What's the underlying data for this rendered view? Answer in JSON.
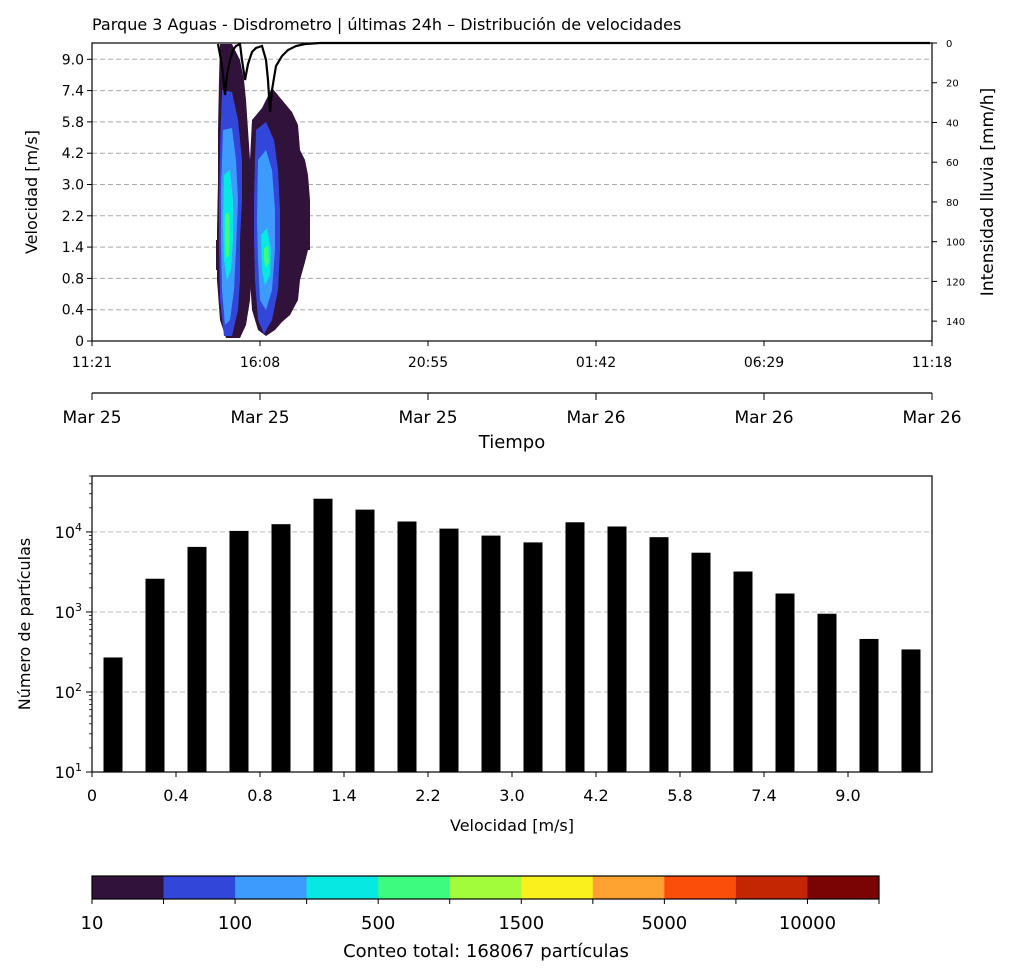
{
  "chart_data": [
    {
      "type": "heatmap",
      "title": "Parque 3 Aguas - Disdrometro | últimas 24h – Distribución de velocidades",
      "ylabel": "Velocidad [m/s]",
      "y_tick_labels": [
        "0",
        "0.4",
        "0.8",
        "1.4",
        "2.2",
        "3.0",
        "4.2",
        "5.8",
        "7.4",
        "9.0"
      ],
      "x_tick_labels_time": [
        "11:21",
        "16:08",
        "20:55",
        "01:42",
        "06:29",
        "11:18"
      ],
      "x_tick_labels_date": [
        "Mar 25",
        "Mar 25",
        "Mar 25",
        "Mar 26",
        "Mar 26",
        "Mar 26"
      ],
      "xlabel": "Tiempo",
      "secondary_ylabel": "Intensidad lluvia [mm/h]",
      "secondary_y_tick_labels": [
        "0",
        "20",
        "40",
        "60",
        "80",
        "100",
        "120",
        "140"
      ],
      "secondary_ylim": [
        150,
        0
      ],
      "grid": "horizontal dashed",
      "rain_periods": [
        {
          "start": "15:30",
          "end": "16:40",
          "peak_count_class": "1500-5000"
        },
        {
          "start": "16:30",
          "end": "18:40",
          "peak_count_class": "500-1500"
        }
      ]
    },
    {
      "type": "bar",
      "xlabel": "Velocidad [m/s]",
      "ylabel": "Número de partículas",
      "yscale": "log",
      "ylim": [
        10,
        50000
      ],
      "y_tick_labels": [
        "10^1",
        "10^2",
        "10^3",
        "10^4"
      ],
      "x_tick_labels": [
        "0",
        "0.4",
        "0.8",
        "1.4",
        "2.2",
        "3.0",
        "4.2",
        "5.8",
        "7.4",
        "9.0"
      ],
      "values": [
        270,
        2600,
        6500,
        10300,
        12500,
        26000,
        19000,
        13500,
        11000,
        9000,
        7400,
        13200,
        11700,
        8600,
        5500,
        3200,
        1700,
        950,
        460,
        340
      ],
      "bar_color": "#000000",
      "grid": "horizontal dashed"
    },
    {
      "type": "colorbar",
      "tick_labels": [
        "10",
        "100",
        "500",
        "1500",
        "5000",
        "10000"
      ],
      "colors": [
        "#30123b",
        "#3246d9",
        "#3e9bfe",
        "#07e8e3",
        "#3dfb7f",
        "#a2fc3c",
        "#f9f01d",
        "#fea331",
        "#fb4e0b",
        "#c42503",
        "#7a0403"
      ],
      "label": "Conteo total: 168067 partículas"
    }
  ]
}
